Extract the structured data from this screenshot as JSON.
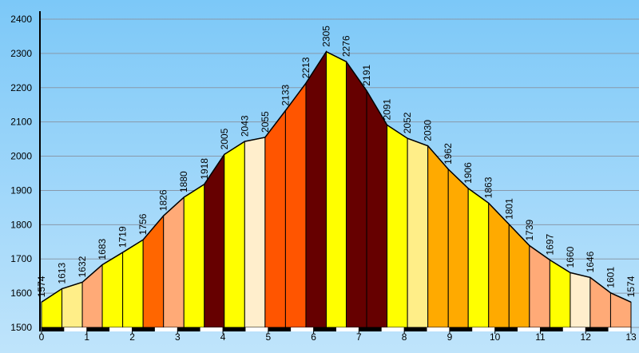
{
  "chart_data": {
    "type": "area",
    "x": [
      0,
      0.45,
      0.9,
      1.34,
      1.79,
      2.24,
      2.69,
      3.14,
      3.59,
      4.03,
      4.48,
      4.93,
      5.38,
      5.83,
      6.28,
      6.72,
      7.17,
      7.62,
      8.07,
      8.52,
      8.97,
      9.41,
      9.86,
      10.31,
      10.76,
      11.21,
      11.66,
      12.1,
      12.55,
      13
    ],
    "values": [
      1574,
      1613,
      1632,
      1683,
      1719,
      1756,
      1826,
      1880,
      1918,
      2005,
      2043,
      2055,
      2133,
      2213,
      2305,
      2276,
      2191,
      2091,
      2052,
      2030,
      1962,
      1906,
      1863,
      1801,
      1739,
      1697,
      1660,
      1646,
      1601,
      1574
    ],
    "segment_colors": [
      "#ffff00",
      "#ffee88",
      "#ffaa77",
      "#ffff00",
      "#ffff00",
      "#ff6600",
      "#ffaa77",
      "#ffff00",
      "#660000",
      "#ffff00",
      "#ffeecc",
      "#ff5500",
      "#ff5500",
      "#660000",
      "#ffff00",
      "#660000",
      "#660000",
      "#ffff00",
      "#ffee88",
      "#ffaa00",
      "#ffaa00",
      "#ffff00",
      "#ffaa00",
      "#ffaa00",
      "#ffaa77",
      "#ffff00",
      "#ffeecc",
      "#ffaa77",
      "#ffaa77"
    ],
    "xlim": [
      0,
      13
    ],
    "xticks": [
      0,
      1,
      2,
      3,
      4,
      5,
      6,
      7,
      8,
      9,
      10,
      11,
      12,
      13
    ],
    "ylim": [
      1500,
      2400
    ],
    "yticks": [
      1500,
      1600,
      1700,
      1800,
      1900,
      2000,
      2100,
      2200,
      2300,
      2400
    ],
    "grid": true
  }
}
